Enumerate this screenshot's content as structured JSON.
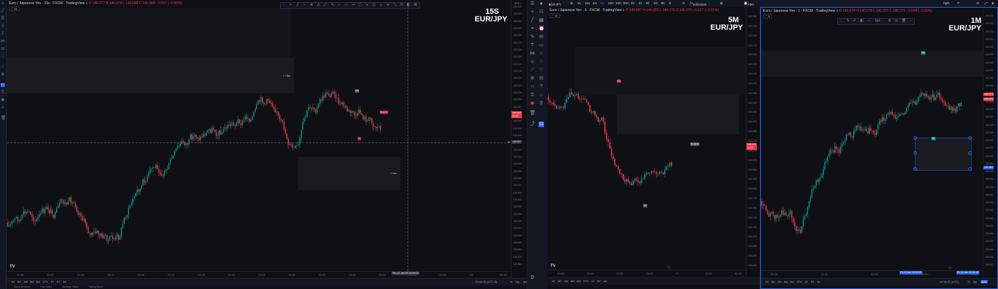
{
  "left_chart": {
    "title": "Euro / Japanese Yen · 15s · FXCM · TradingView",
    "ohlc": "O 140.077  H 140.079  L 140.069  C 140.069  −0.007 (−0.00%)",
    "interval_badge": "11",
    "big_interval": "15S",
    "big_symbol": "EUR/JPY",
    "price_ticks": [
      "140.220",
      "140.210",
      "140.200",
      "140.190",
      "140.180",
      "140.170",
      "140.160",
      "140.150",
      "140.140",
      "140.130",
      "140.120",
      "140.110",
      "140.100",
      "140.090",
      "140.080",
      "140.070",
      "140.060",
      "140.050",
      "140.040",
      "140.030",
      "140.020",
      "140.010",
      "140.000",
      "139.990",
      "139.980",
      "139.970",
      "139.960",
      "139.950",
      "139.940",
      "139.930",
      "139.920",
      "139.910",
      "139.900",
      "139.890",
      "139.880",
      "139.870",
      "139.860"
    ],
    "current_price": "140.069",
    "current_time": "00:30",
    "crosshair_price": "140.027",
    "time_ticks": [
      "22:45",
      "22:50",
      "22:55",
      "23:00",
      "23:05",
      "23:10",
      "23:15",
      "23:20",
      "23:25",
      "23:30",
      "23:35",
      "23:40",
      "23:45",
      "23:50",
      "23:55",
      "13",
      "00:05"
    ],
    "crosshair_time": "Thu 12 Jan '23  23:49:15",
    "zone_labels": [
      "15m",
      "5m"
    ],
    "labels": {
      "ob": "OB",
      "bearish": "Bearish",
      "ll": "LL"
    },
    "ranges": [
      "1D",
      "5D",
      "1M",
      "3M",
      "6M",
      "YTD",
      "1Y",
      "5Y",
      "All"
    ],
    "clock": "23:42:39 (UTC-5)",
    "pct": "%",
    "log": "log",
    "auto": "auto",
    "bottom_tabs": [
      "Stock Screener",
      "Pine Editor",
      "Strategy Tester",
      "Trading Panel"
    ],
    "colors": {
      "up": "#089981",
      "down": "#f23645"
    }
  },
  "mid_toolbar": {
    "symbol": "EURJPY",
    "intervals": [
      "1s",
      "15s",
      "1m",
      "5m",
      "10m",
      "15m",
      "30m",
      "1h",
      "4h",
      "6h",
      "1D",
      "8h",
      "D"
    ],
    "indicators_label": "Indicators",
    "alert_label": "Alert"
  },
  "mid_chart": {
    "title": "Euro / Japanese Yen · 5 · FXCM · TradingView",
    "ohlc": "O 140.087  H 140.091  L 140.070  C 140.070  −0.017 (−0.01%)",
    "interval_badge": "11",
    "big_interval": "5M",
    "big_symbol": "EUR/JPY",
    "price_ticks": [
      "140.250",
      "140.225",
      "140.200",
      "140.175",
      "140.150",
      "140.125",
      "140.100",
      "140.075",
      "140.050",
      "140.025",
      "140.000",
      "139.975",
      "139.950",
      "139.925",
      "139.900",
      "139.875",
      "139.850",
      "139.825",
      "139.800",
      "139.775",
      "139.750",
      "139.725",
      "139.700",
      "139.675",
      "139.650",
      "139.625",
      "139.600"
    ],
    "current_price": "140.070",
    "current_time": "00:17",
    "labels": {
      "eq": "EQ",
      "ranging": "Ranging",
      "hl": "HL"
    },
    "time_ticks": [
      "20:00",
      "21:00",
      "22:00",
      "23:00",
      "13",
      "01:00",
      "02:00"
    ],
    "ranges": [
      "1D",
      "5D",
      "1M",
      "3M",
      "6M",
      "YTD",
      "1Y",
      "5Y",
      "All"
    ]
  },
  "right_chart": {
    "layout": "right",
    "title": "Euro / Japanese Yen · 1 · FXCM · TradingView",
    "ohlc": "O 140.074  H 140.076  L 140.070  C 140.070  −0.004 (−0.00%)",
    "interval_badge": "5",
    "big_interval": "1M",
    "big_symbol": "EUR/JPY",
    "tool_size": "1px",
    "price_ticks": [
      "140.140",
      "140.130",
      "140.120",
      "140.110",
      "140.100",
      "140.090",
      "140.080",
      "140.070",
      "140.060",
      "140.050",
      "140.040",
      "140.030",
      "140.020",
      "140.010",
      "140.000",
      "139.990",
      "139.980",
      "139.970",
      "139.960",
      "139.950",
      "139.940",
      "139.930",
      "139.920",
      "139.910",
      "139.900",
      "139.890",
      "139.880",
      "139.870",
      "139.860",
      "139.850",
      "139.840",
      "139.830",
      "139.820"
    ],
    "current_price": "140.070",
    "tag_top": "140.079",
    "tag_low": "139.981",
    "labels": {
      "hh": "HH",
      "hl": "HL"
    },
    "time_ticks": [
      "01:00",
      "01:30",
      "02:00",
      "02:30",
      "03:00"
    ],
    "time_tag_a": "Fri 13 Jan '23  02:21",
    "time_tag_b": "Fri 13 Jan '23  02:46",
    "clock": "02:42:37 (UTC)",
    "ranges": [
      "1D",
      "5D",
      "1M",
      "3M",
      "6M",
      "YTD",
      "1Y",
      "5Y",
      "All"
    ]
  }
}
